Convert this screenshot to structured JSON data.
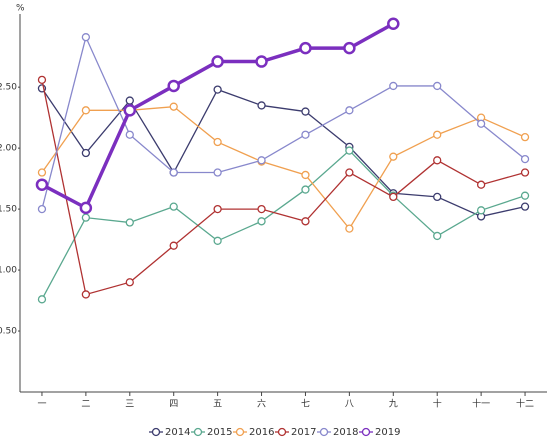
{
  "chart_data": {
    "type": "line",
    "y_label": "%",
    "categories": [
      "一",
      "二",
      "三",
      "四",
      "五",
      "六",
      "七",
      "八",
      "九",
      "十",
      "十一",
      "十二"
    ],
    "ylim": [
      0,
      3.1
    ],
    "yticks": [
      {
        "value": 0.5,
        "label": "0.50"
      },
      {
        "value": 1,
        "label": "1.00"
      },
      {
        "value": 1.5,
        "label": "1.50"
      },
      {
        "value": 2,
        "label": "2.00"
      },
      {
        "value": 2.5,
        "label": "2.50"
      }
    ],
    "grid": false,
    "legend": "bottom",
    "series": [
      {
        "name": "2014",
        "color": "#3c3c6e",
        "width": 1.3,
        "values": [
          2.49,
          1.96,
          2.39,
          1.8,
          2.48,
          2.35,
          2.3,
          2.01,
          1.63,
          1.6,
          1.44,
          1.52
        ]
      },
      {
        "name": "2015",
        "color": "#5aa88f",
        "width": 1.3,
        "values": [
          0.76,
          1.43,
          1.39,
          1.52,
          1.24,
          1.4,
          1.66,
          1.98,
          1.61,
          1.28,
          1.49,
          1.61
        ]
      },
      {
        "name": "2016",
        "color": "#f0a050",
        "width": 1.3,
        "values": [
          1.8,
          2.31,
          2.31,
          2.34,
          2.05,
          1.89,
          1.78,
          1.34,
          1.93,
          2.11,
          2.25,
          2.09
        ]
      },
      {
        "name": "2017",
        "color": "#b03232",
        "width": 1.3,
        "values": [
          2.56,
          0.8,
          0.9,
          1.2,
          1.5,
          1.5,
          1.4,
          1.8,
          1.6,
          1.9,
          1.7,
          1.8
        ]
      },
      {
        "name": "2018",
        "color": "#8888cc",
        "width": 1.3,
        "values": [
          1.5,
          2.91,
          2.11,
          1.8,
          1.8,
          1.9,
          2.11,
          2.31,
          2.51,
          2.51,
          2.2,
          1.91
        ]
      },
      {
        "name": "2019",
        "color": "#7b2fbf",
        "width": 3.5,
        "values": [
          1.7,
          1.51,
          2.31,
          2.51,
          2.71,
          2.71,
          2.82,
          2.82,
          3.02,
          null,
          null,
          null
        ]
      }
    ]
  }
}
